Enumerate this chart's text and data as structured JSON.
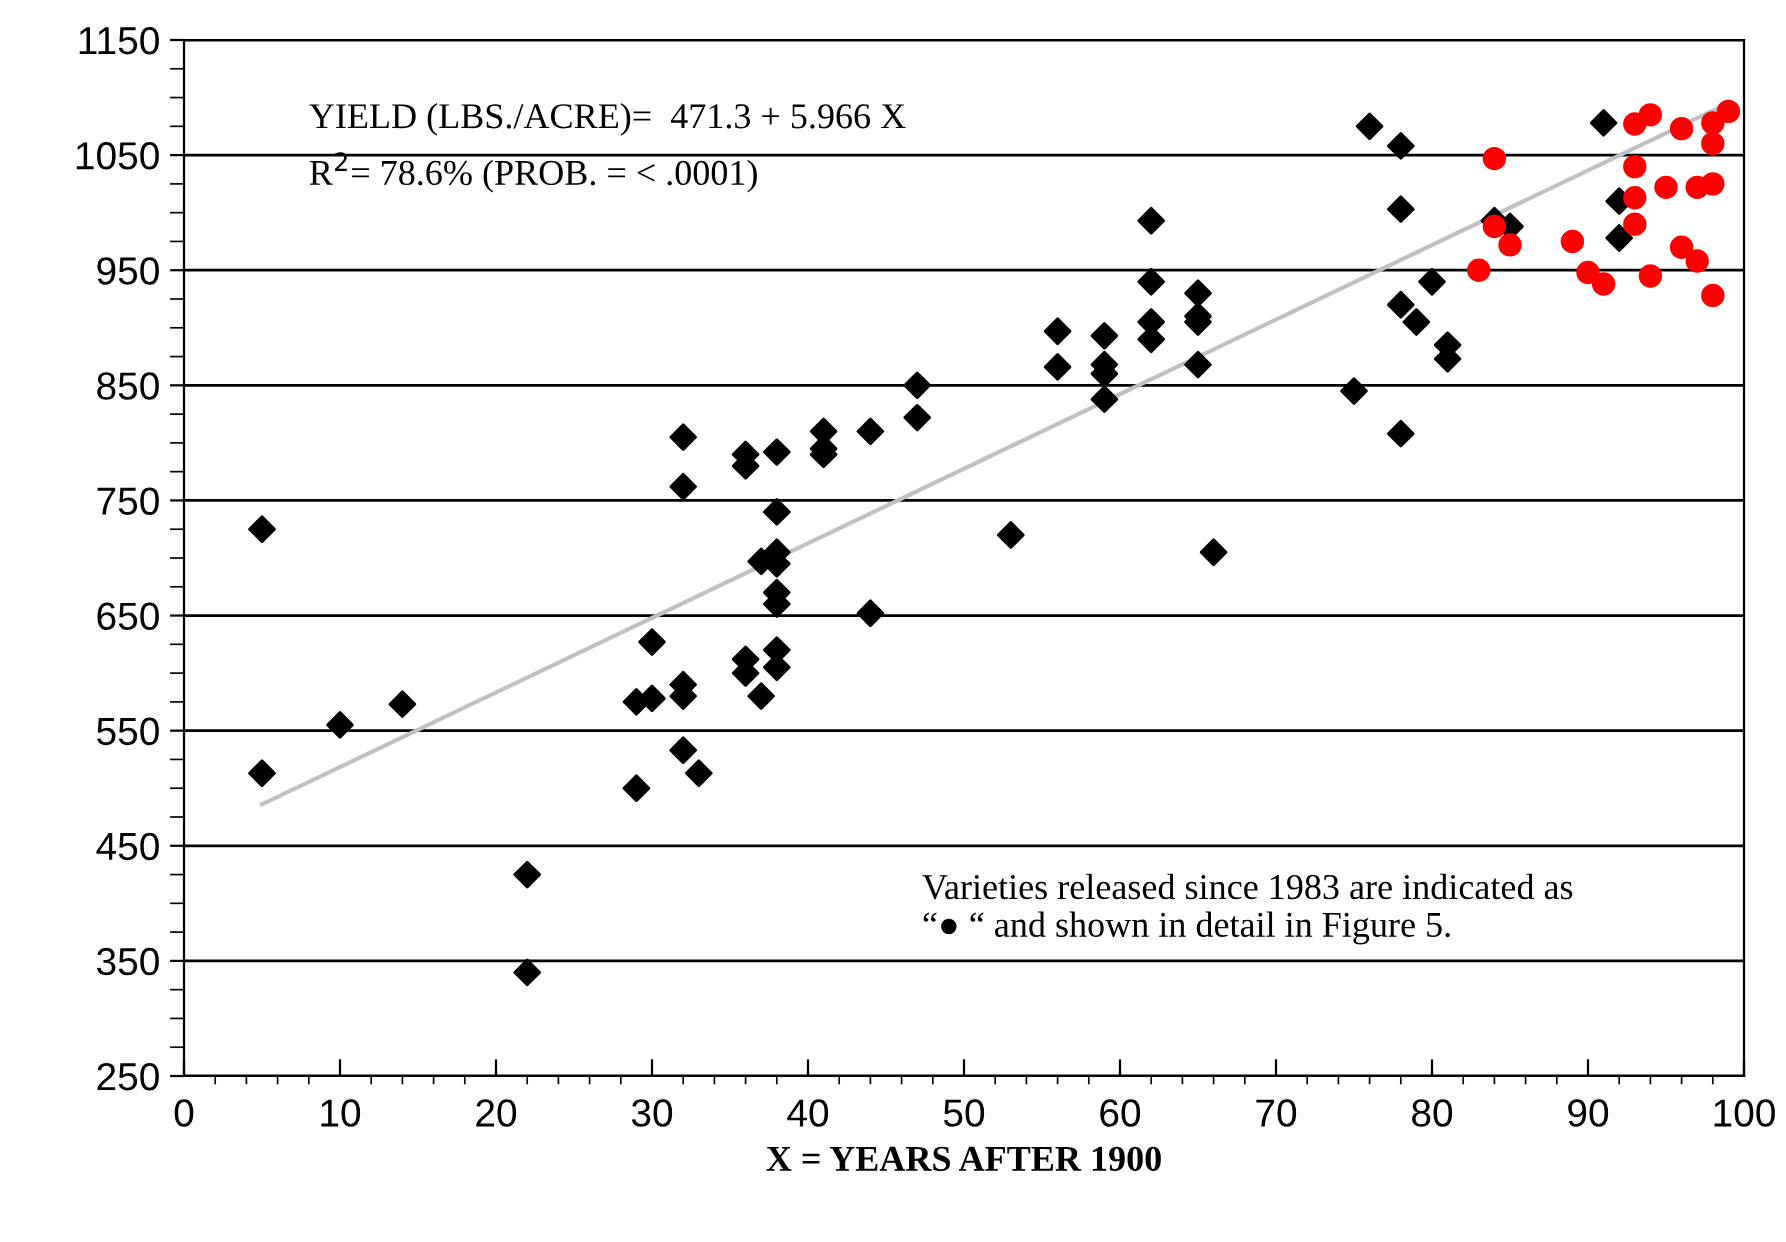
{
  "chart_data": {
    "type": "scatter",
    "xlabel": "X = YEARS AFTER 1900",
    "xlim": [
      0,
      100
    ],
    "xticks": [
      0,
      10,
      20,
      30,
      40,
      50,
      60,
      70,
      80,
      90,
      100
    ],
    "ylim": [
      250,
      1150
    ],
    "yticks": [
      250,
      350,
      450,
      550,
      650,
      750,
      850,
      950,
      1050,
      1150
    ],
    "grid": "y",
    "series": [
      {
        "marker": "diamond",
        "color": "#000000",
        "x": [
          5,
          5,
          10,
          14,
          22,
          22,
          29,
          29,
          30,
          30,
          32,
          32,
          32,
          32,
          32,
          33,
          36,
          36,
          36,
          36,
          37,
          37,
          38,
          38,
          38,
          38,
          38,
          38,
          38,
          38,
          41,
          41,
          41,
          44,
          44,
          47,
          47,
          53,
          56,
          56,
          59,
          59,
          59,
          59,
          62,
          62,
          62,
          62,
          65,
          65,
          65,
          65,
          66,
          75,
          76,
          78,
          78,
          78,
          78,
          79,
          80,
          81,
          81,
          84,
          85,
          91,
          92,
          92
        ],
        "values": [
          725,
          513,
          555,
          573,
          425,
          340,
          500,
          575,
          578,
          627,
          805,
          762,
          590,
          580,
          533,
          513,
          790,
          780,
          612,
          600,
          697,
          580,
          792,
          740,
          705,
          695,
          670,
          660,
          620,
          605,
          810,
          795,
          790,
          810,
          652,
          850,
          822,
          720,
          897,
          866,
          893,
          868,
          860,
          838,
          993,
          940,
          905,
          890,
          930,
          910,
          905,
          868,
          705,
          845,
          1075,
          1058,
          1003,
          920,
          808,
          905,
          940,
          885,
          873,
          993,
          988,
          1078,
          1010,
          978
        ]
      },
      {
        "marker": "circle",
        "color": "#ff0000",
        "x": [
          83,
          84,
          84,
          85,
          89,
          90,
          91,
          93,
          93,
          93,
          93,
          94,
          94,
          95,
          96,
          96,
          97,
          97,
          98,
          98,
          98,
          98,
          99
        ],
        "values": [
          950,
          1047,
          988,
          972,
          975,
          948,
          938,
          1077,
          1040,
          1013,
          990,
          1085,
          945,
          1022,
          1073,
          970,
          1022,
          958,
          1078,
          1060,
          1025,
          928,
          1088
        ]
      },
      {
        "type": "line",
        "marker": "none",
        "color": "#c0c0c0",
        "x": [
          5,
          99
        ],
        "values": [
          486,
          1095
        ]
      }
    ],
    "annotations": [
      "YIELD (LBS./ACRE)=  471.3 + 5.966 X",
      "R$^{2}$= 78.6% (PROB. = < .0001)",
      "Varieties released since 1983 are indicated as\n“● “ and shown in detail in Figure 5."
    ]
  }
}
